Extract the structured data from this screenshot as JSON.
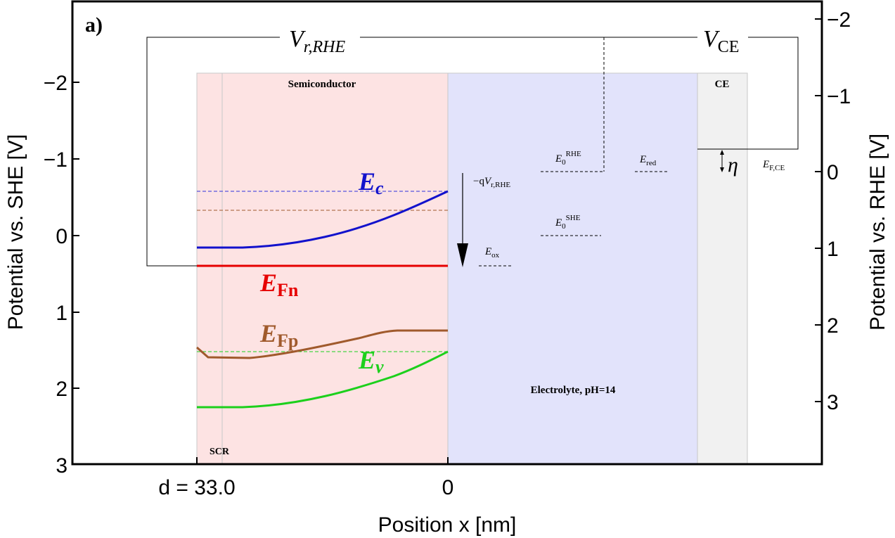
{
  "panel_label": "a)",
  "axes": {
    "xlabel": "Position x [nm]",
    "ylabel_left": "Potential vs. SHE [V]",
    "ylabel_right": "Potential vs. RHE [V]",
    "x_ticks": [
      "d = 33.0",
      "0"
    ],
    "y_ticks_left": [
      "−2",
      "−1",
      "0",
      "1",
      "2",
      "3"
    ],
    "y_ticks_right": [
      "−2",
      "−1",
      "0",
      "1",
      "2",
      "3"
    ]
  },
  "regions": {
    "semiconductor": "Semiconductor",
    "scr": "SCR",
    "electrolyte": "Electrolyte, pH=14",
    "ce": "CE"
  },
  "colors": {
    "semiconductor_fill": "#fde3e3",
    "electrolyte_fill": "#e2e3fb",
    "ce_fill": "#f1f1f1",
    "ec": "#1212cc",
    "efn": "#e60000",
    "efp": "#a05a2c",
    "ev": "#1cd01c"
  },
  "levels": {
    "ec": {
      "main": "E",
      "sub": "c"
    },
    "efn": {
      "main": "E",
      "sub": "Fn"
    },
    "efp": {
      "main": "E",
      "sub": "Fp"
    },
    "ev": {
      "main": "E",
      "sub": "v"
    },
    "e0_rhe": {
      "main": "E",
      "sub": "0",
      "sup": "RHE"
    },
    "e0_she": {
      "main": "E",
      "sub": "0",
      "sup": "SHE"
    },
    "e_red": {
      "main": "E",
      "sub": "red"
    },
    "e_ox": {
      "main": "E",
      "sub": "ox"
    },
    "ef_ce": {
      "main": "E",
      "sub": "F,CE"
    }
  },
  "voltages": {
    "vr_rhe": {
      "main": "V",
      "sub": "r,RHE"
    },
    "vce": {
      "main": "V",
      "sub": "CE"
    },
    "neg_q_vr": {
      "prefix": "−q",
      "main": "V",
      "sub": "r,RHE"
    },
    "eta": "η"
  }
}
